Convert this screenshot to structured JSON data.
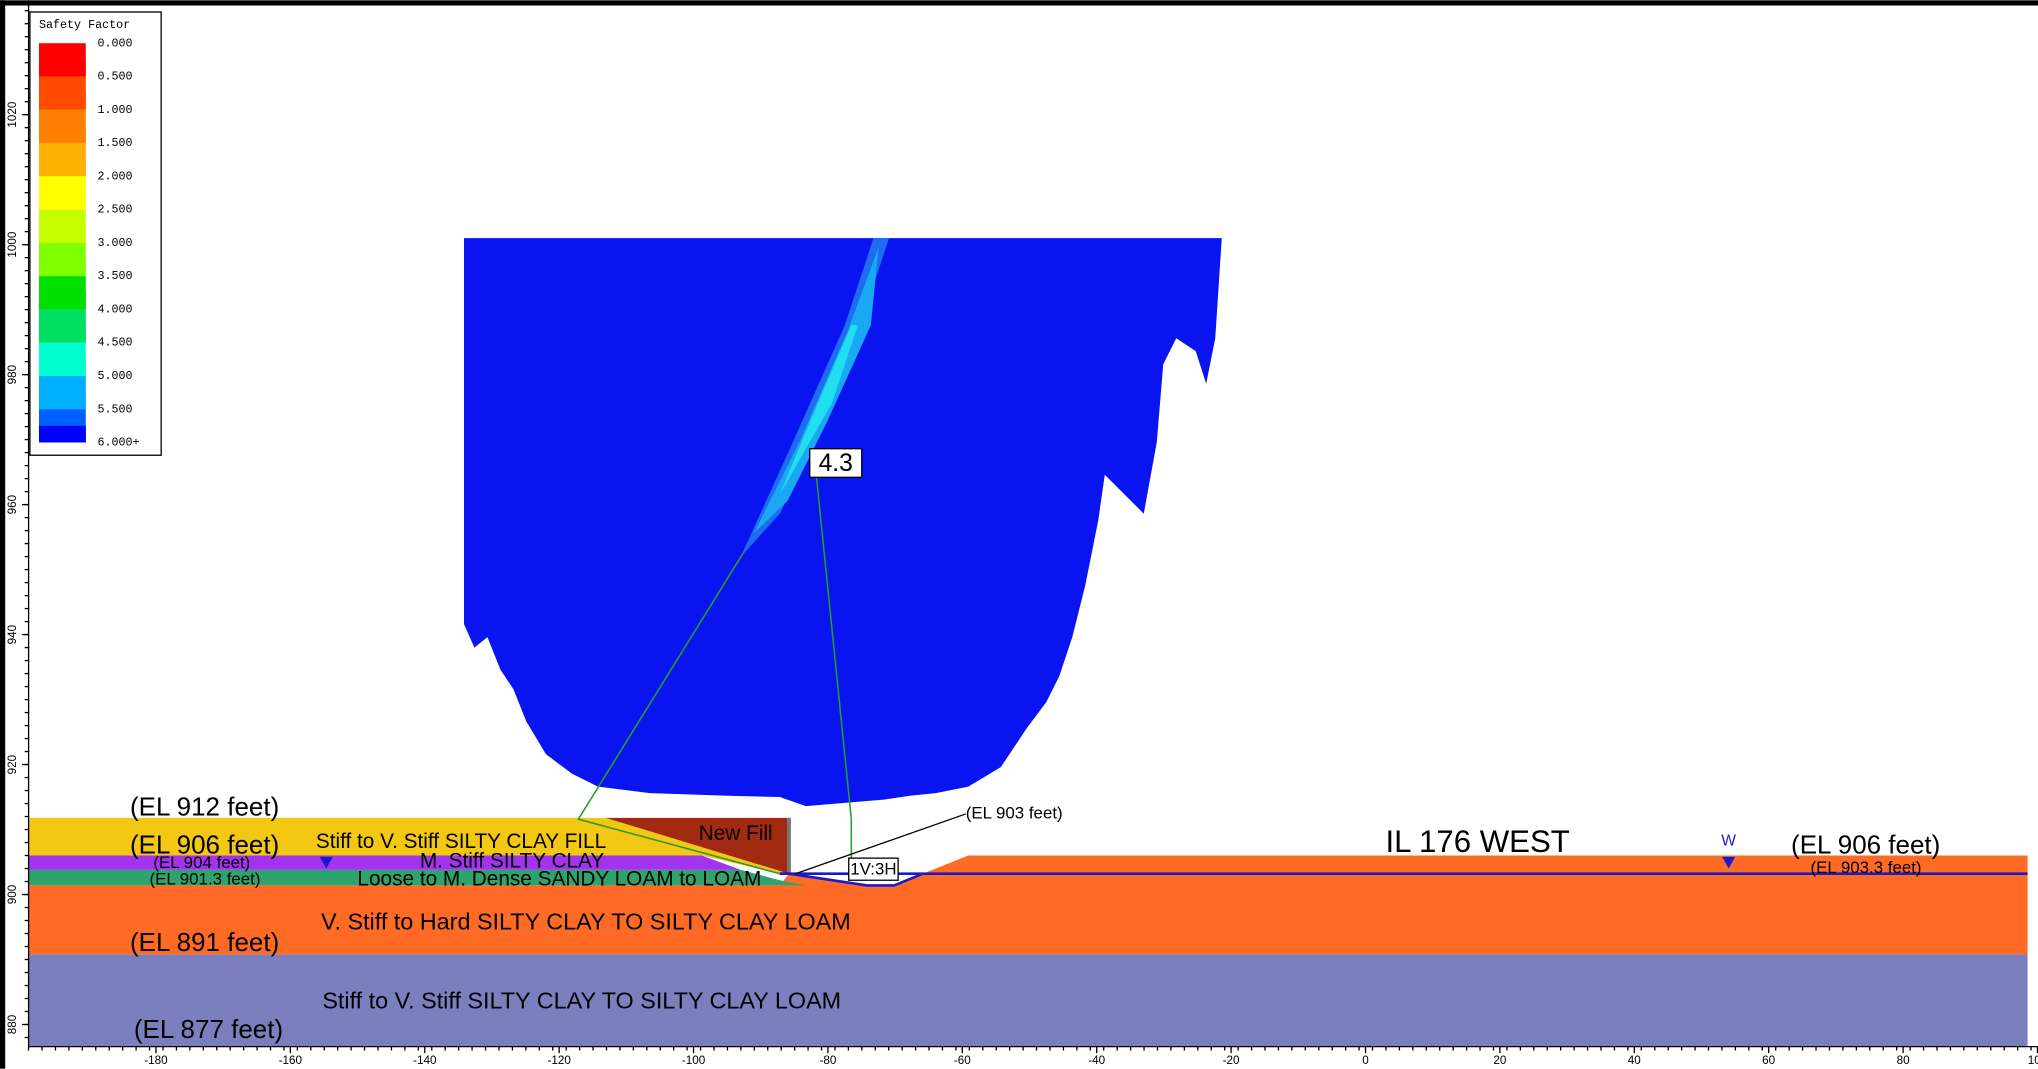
{
  "legend": {
    "title": "Safety Factor",
    "labels": [
      "0.000",
      "0.500",
      "1.000",
      "1.500",
      "2.000",
      "2.500",
      "3.000",
      "3.500",
      "4.000",
      "4.500",
      "5.000",
      "5.500",
      "6.000+"
    ]
  },
  "x_axis": {
    "ticks": [
      "-180",
      "-160",
      "-140",
      "-120",
      "-100",
      "-80",
      "-60",
      "-40",
      "-20",
      "0",
      "20",
      "40",
      "60",
      "80",
      "100"
    ]
  },
  "y_axis": {
    "ticks": [
      "1020",
      "1000",
      "980",
      "960",
      "940",
      "920",
      "900",
      "880"
    ]
  },
  "min_factor": "4.3",
  "elevations": [
    "(EL 912 feet)",
    "(EL 906 feet)",
    "(EL 904 feet)",
    "(EL 901.3 feet)",
    "(EL 891 feet)",
    "(EL 877 feet)",
    "(EL 903 feet)",
    "(EL 906 feet)",
    "(EL 903.3 feet)"
  ],
  "layers": [
    "Stiff to V. Stiff SILTY CLAY FILL",
    "M. Stiff SILTY CLAY",
    "Loose to M. Dense SANDY LOAM to LOAM",
    "V. Stiff to Hard SILTY CLAY TO SILTY CLAY LOAM",
    "Stiff to V. Stiff SILTY CLAY TO SILTY CLAY LOAM"
  ],
  "new_fill": "New Fill",
  "slope": "1V:3H",
  "section": "IL 176 WEST",
  "water": "W"
}
